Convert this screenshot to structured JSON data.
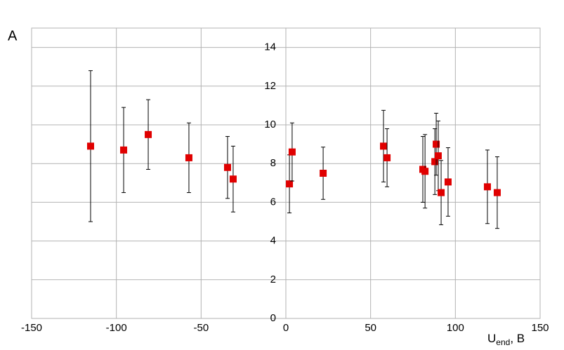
{
  "chart_data": {
    "type": "scatter",
    "ylabel": "A",
    "xlabel": {
      "main": "U",
      "sub": "end",
      "rest": ", B"
    },
    "x": [
      -115.2,
      -95.7,
      -81.2,
      -57.2,
      -34.4,
      -31.1,
      2.1,
      3.7,
      22.0,
      57.6,
      59.7,
      80.8,
      82.1,
      87.9,
      88.7,
      89.9,
      91.6,
      95.7,
      118.9,
      124.7
    ],
    "values": [
      8.9,
      8.7,
      9.5,
      8.3,
      7.8,
      7.2,
      6.95,
      8.6,
      7.5,
      8.9,
      8.3,
      7.7,
      7.6,
      8.1,
      9.0,
      8.4,
      6.5,
      7.05,
      6.8,
      6.5
    ],
    "errors": [
      3.9,
      2.2,
      1.8,
      1.8,
      1.6,
      1.7,
      1.5,
      1.5,
      1.35,
      1.85,
      1.5,
      1.7,
      1.9,
      1.7,
      1.6,
      1.8,
      1.66,
      1.77,
      1.9,
      1.85
    ],
    "color": "#e00000",
    "xlim": [
      -150,
      150
    ],
    "xticks": [
      -150,
      -100,
      -50,
      0,
      50,
      100,
      150
    ],
    "ylim": [
      0,
      15
    ],
    "yticks": [
      0,
      2,
      4,
      6,
      8,
      10,
      12,
      14
    ],
    "grid": true
  }
}
